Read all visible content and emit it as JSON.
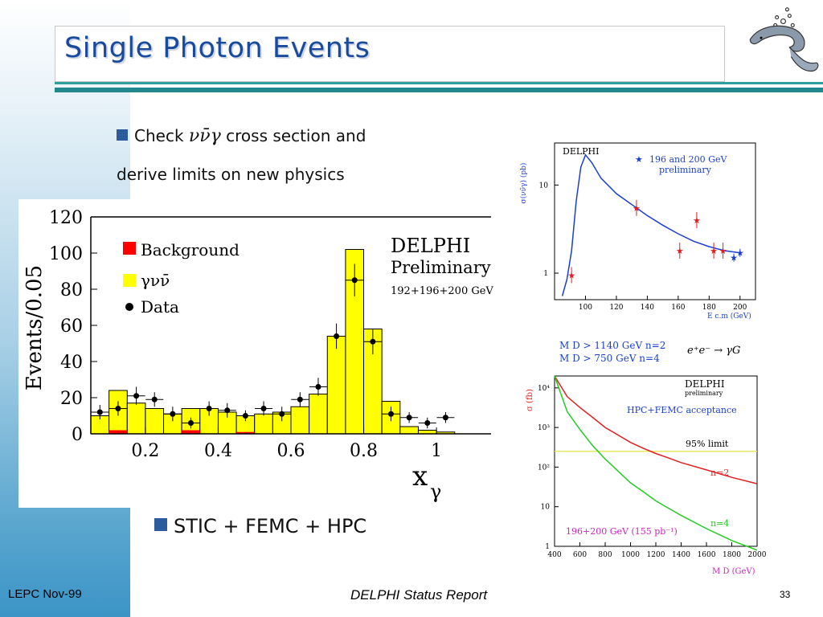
{
  "slide": {
    "title": "Single Photon Events",
    "bullet1_prefix": "Check ",
    "bullet1_symbol": "νν̄γ",
    "bullet1_suffix": " cross section and",
    "bullet1_line2": "derive limits on new physics",
    "bullet2": "STIC + FEMC + HPC",
    "footer_left": "LEPC Nov-99",
    "footer_center": "DELPHI Status Report",
    "footer_right": "33",
    "logo_icon": "dolphin-logo-icon"
  },
  "colors": {
    "title": "#1a4a9c",
    "bullet_square": "#2b5d9e",
    "rule": "#23888d",
    "signal": "#ffff00",
    "background_fill": "#ff0000",
    "theory_curve": "#1a3fd0",
    "n2_curve": "#e02020",
    "n4_curve": "#22cc22",
    "limit_line": "#e8e860"
  },
  "chart_data": [
    {
      "type": "bar",
      "ylabel": "Events/0.05",
      "xlabel": "x_γ",
      "xlim": [
        0.05,
        1.15
      ],
      "ylim": [
        0,
        120
      ],
      "x_ticks": [
        "0.2",
        "0.4",
        "0.6",
        "0.8",
        "1"
      ],
      "y_ticks": [
        "0",
        "20",
        "40",
        "60",
        "80",
        "100",
        "120"
      ],
      "annotation_title": "DELPHI",
      "annotation_sub": "Preliminary",
      "annotation_energy": "192+196+200 GeV",
      "legend": [
        {
          "label": "Background",
          "color": "#ff0000"
        },
        {
          "label": "γνν̄",
          "color": "#ffff00"
        },
        {
          "label": "Data",
          "color": "#000000"
        }
      ],
      "bin_edges": [
        0.05,
        0.1,
        0.15,
        0.2,
        0.25,
        0.3,
        0.35,
        0.4,
        0.45,
        0.5,
        0.55,
        0.6,
        0.65,
        0.7,
        0.75,
        0.8,
        0.85,
        0.9,
        0.95,
        1.0,
        1.05,
        1.1
      ],
      "series": [
        {
          "name": "γνν̄",
          "values": [
            10,
            24,
            17,
            14,
            11,
            14,
            14,
            12,
            10,
            11,
            12,
            15,
            22,
            54,
            102,
            58,
            18,
            4,
            2,
            1,
            0
          ]
        },
        {
          "name": "Background",
          "values": [
            0,
            2,
            0,
            0,
            0,
            2,
            0,
            0,
            1,
            0,
            0,
            0,
            0,
            0,
            0,
            0,
            0,
            0,
            0,
            0,
            0
          ]
        },
        {
          "name": "Data",
          "x": [
            0.075,
            0.125,
            0.175,
            0.225,
            0.275,
            0.325,
            0.375,
            0.425,
            0.475,
            0.525,
            0.575,
            0.625,
            0.675,
            0.725,
            0.775,
            0.825,
            0.875,
            0.925,
            0.975,
            1.025
          ],
          "values": [
            12,
            14,
            21,
            19,
            11,
            6,
            14,
            13,
            10,
            14,
            11,
            19,
            26,
            54,
            85,
            51,
            11,
            9,
            6,
            9
          ],
          "errors": [
            4,
            4,
            5,
            4,
            4,
            3,
            4,
            4,
            3,
            4,
            4,
            4,
            5,
            7,
            9,
            7,
            4,
            3,
            3,
            3
          ]
        }
      ]
    },
    {
      "type": "line",
      "ylabel": "σ(νν̄γ) (pb)",
      "xlabel": "E c.m (GeV)",
      "xlim": [
        80,
        210
      ],
      "ylim_log": [
        0.5,
        30
      ],
      "x_ticks": [
        "100",
        "120",
        "140",
        "160",
        "180",
        "200"
      ],
      "y_ticks": [
        "1",
        "10"
      ],
      "annotation_title": "DELPHI",
      "legend_label": "196 and 200 GeV",
      "legend_sub": "preliminary",
      "curve": {
        "x": [
          85,
          88,
          91,
          94,
          97,
          100,
          104,
          110,
          120,
          130,
          140,
          150,
          160,
          170,
          180,
          190,
          200
        ],
        "y": [
          0.55,
          0.85,
          1.8,
          6.5,
          16,
          22,
          18,
          12,
          8,
          6,
          4.5,
          3.5,
          2.8,
          2.3,
          2.0,
          1.8,
          1.7
        ]
      },
      "points_red": {
        "x": [
          91,
          133,
          161,
          172,
          183,
          189
        ],
        "y": [
          0.95,
          5.5,
          1.8,
          4.0,
          1.8,
          1.8
        ]
      },
      "points_blue": {
        "x": [
          196,
          200
        ],
        "y": [
          1.5,
          1.7
        ]
      }
    },
    {
      "type": "line",
      "ylabel": "σ (fb)",
      "xlabel": "M D (GeV)",
      "xlim": [
        400,
        2000
      ],
      "ylim_log": [
        1,
        20000
      ],
      "x_ticks": [
        "400",
        "600",
        "800",
        "1000",
        "1200",
        "1400",
        "1600",
        "1800",
        "2000"
      ],
      "y_ticks": [
        "1",
        "10",
        "10²",
        "10³",
        "10⁴"
      ],
      "text_limits_line1": "M D > 1140 GeV  n=2",
      "text_limits_line2": "M D >   750 GeV  n=4",
      "process": "e⁺e⁻ → γG",
      "annotation_title": "DELPHI",
      "annotation_sub": "preliminary",
      "acceptance": "HPC+FEMC acceptance",
      "limit_label": "95% limit",
      "limit_value": 250,
      "n2_label": "n=2",
      "n4_label": "n=4",
      "lumi_label": "196+200 GeV (155 pb⁻¹)",
      "series": [
        {
          "name": "n=2",
          "x": [
            400,
            500,
            600,
            700,
            800,
            900,
            1000,
            1100,
            1200,
            1300,
            1400,
            1600,
            1800,
            2000
          ],
          "values": [
            20000,
            6000,
            3200,
            1800,
            1000,
            650,
            420,
            300,
            220,
            170,
            130,
            85,
            55,
            38
          ]
        },
        {
          "name": "n=4",
          "x": [
            400,
            500,
            600,
            700,
            800,
            900,
            1000,
            1100,
            1200,
            1400,
            1600,
            1800,
            2000
          ],
          "values": [
            20000,
            2500,
            900,
            350,
            160,
            80,
            40,
            24,
            14,
            6,
            2.8,
            1.4,
            0.8
          ]
        }
      ]
    }
  ]
}
